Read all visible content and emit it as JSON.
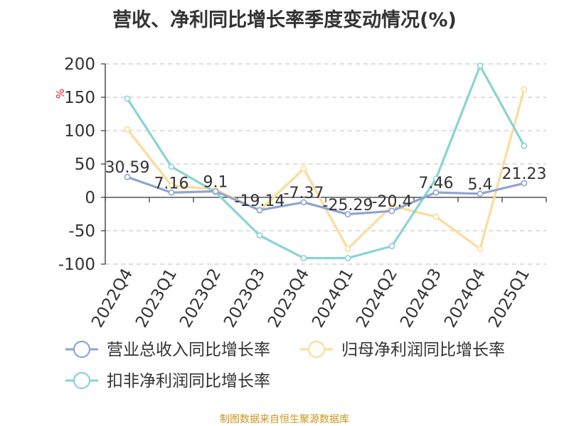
{
  "chart_data": {
    "type": "line",
    "title": "营收、净利同比增长率季度变动情况(%)",
    "ylabel": "%",
    "xlabel": "",
    "categories": [
      "2022Q4",
      "2023Q1",
      "2023Q2",
      "2023Q3",
      "2023Q4",
      "2024Q1",
      "2024Q2",
      "2024Q3",
      "2024Q4",
      "2025Q1"
    ],
    "ylim": [
      -100,
      200
    ],
    "yticks": [
      -100,
      -50,
      0,
      50,
      100,
      150,
      200
    ],
    "grid": true,
    "legend_position": "bottom",
    "series": [
      {
        "name": "营业总收入同比增长率",
        "color": "#8ea4d2",
        "values": [
          30.59,
          7.16,
          9.1,
          -19.14,
          -7.37,
          -25.29,
          -20.4,
          7.46,
          5.4,
          21.23
        ],
        "labels": [
          "30.59",
          "7.16",
          "9.1",
          "-19.14",
          "-7.37",
          "-25.29",
          "-20.4",
          "7.46",
          "5.4",
          "21.23"
        ]
      },
      {
        "name": "归母净利润同比增长率",
        "color": "#fbdc9a",
        "values": [
          102,
          18,
          12,
          -20,
          43,
          -77,
          -13,
          -29,
          -77,
          162
        ]
      },
      {
        "name": "扣非净利润同比增长率",
        "color": "#88d3d6",
        "values": [
          148,
          46,
          8,
          -57,
          -91,
          -91,
          -73,
          28,
          197,
          77
        ]
      }
    ]
  },
  "source_note": "制图数据来自恒生聚源数据库"
}
